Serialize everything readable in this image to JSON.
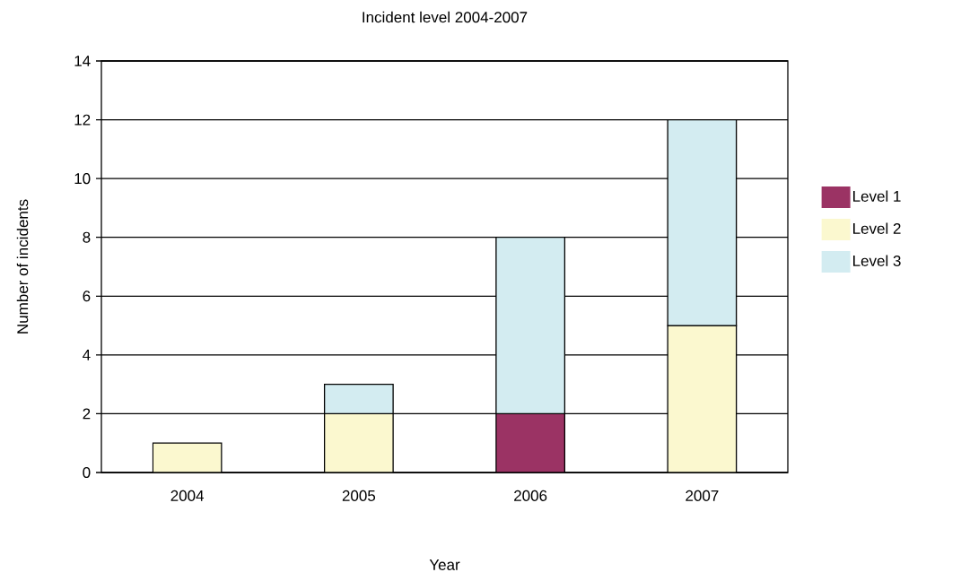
{
  "chart_data": {
    "type": "bar",
    "title": "Incident level 2004-2007",
    "xlabel": "Year",
    "ylabel": "Number of incidents",
    "categories": [
      "2004",
      "2005",
      "2006",
      "2007"
    ],
    "stacked": true,
    "series": [
      {
        "name": "Level 1",
        "color": "#9b3364",
        "values": [
          null,
          null,
          2,
          null
        ]
      },
      {
        "name": "Level 2",
        "color": "#fbf8cf",
        "values": [
          1,
          2,
          null,
          5
        ]
      },
      {
        "name": "Level 3",
        "color": "#d3ecf1",
        "values": [
          null,
          1,
          6,
          7
        ]
      }
    ],
    "ylim": [
      0,
      14
    ],
    "yticks": [
      0,
      2,
      4,
      6,
      8,
      10,
      12,
      14
    ],
    "grid": "y",
    "legend": "right"
  }
}
